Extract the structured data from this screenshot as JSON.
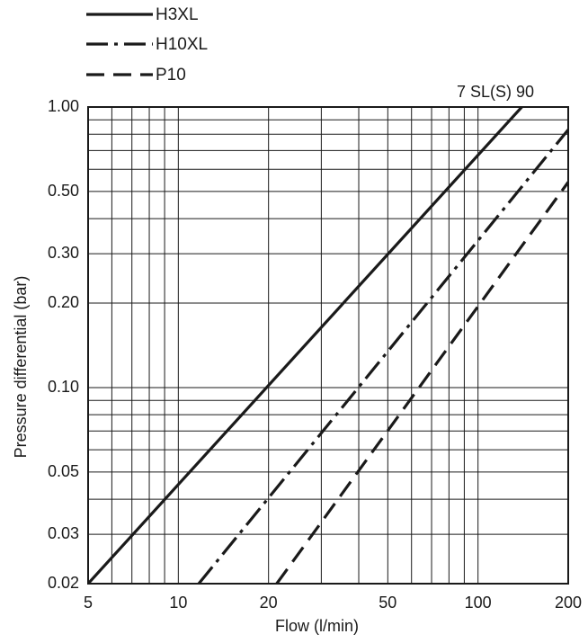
{
  "chart_data": {
    "type": "line",
    "model_label": "7 SL(S) 90",
    "xlabel": "Flow (l/min)",
    "ylabel": "Pressure differential (bar)",
    "x_scale": "log",
    "y_scale": "log",
    "xlim": [
      5,
      200
    ],
    "ylim": [
      0.02,
      1.0
    ],
    "grid": true,
    "legend_position": "top-left",
    "x_ticks": [
      {
        "value": 5,
        "label": "5"
      },
      {
        "value": 10,
        "label": "10"
      },
      {
        "value": 20,
        "label": "20"
      },
      {
        "value": 50,
        "label": "50"
      },
      {
        "value": 100,
        "label": "100"
      },
      {
        "value": 200,
        "label": "200"
      }
    ],
    "y_ticks": [
      {
        "value": 0.02,
        "label": "0.02"
      },
      {
        "value": 0.03,
        "label": "0.03"
      },
      {
        "value": 0.05,
        "label": "0.05"
      },
      {
        "value": 0.1,
        "label": "0.10"
      },
      {
        "value": 0.2,
        "label": "0.20"
      },
      {
        "value": 0.3,
        "label": "0.30"
      },
      {
        "value": 0.5,
        "label": "0.50"
      },
      {
        "value": 1.0,
        "label": "1.00"
      }
    ],
    "x_grid": [
      5,
      6,
      7,
      8,
      9,
      10,
      20,
      30,
      40,
      50,
      60,
      70,
      80,
      90,
      100,
      200
    ],
    "y_grid": [
      0.02,
      0.03,
      0.04,
      0.05,
      0.06,
      0.07,
      0.08,
      0.09,
      0.1,
      0.2,
      0.3,
      0.4,
      0.5,
      0.6,
      0.7,
      0.8,
      0.9,
      1.0
    ],
    "series": [
      {
        "name": "H3XL",
        "style": "solid",
        "x": [
          5,
          140
        ],
        "y": [
          0.02,
          1.0
        ]
      },
      {
        "name": "H10XL",
        "style": "dashdot",
        "x": [
          11.7,
          200
        ],
        "y": [
          0.02,
          0.83
        ]
      },
      {
        "name": "P10",
        "style": "dashed",
        "x": [
          21.3,
          200
        ],
        "y": [
          0.02,
          0.54
        ]
      }
    ],
    "colors": {
      "line": "#1a1a1a",
      "grid": "#1a1a1a",
      "background": "#ffffff"
    }
  }
}
